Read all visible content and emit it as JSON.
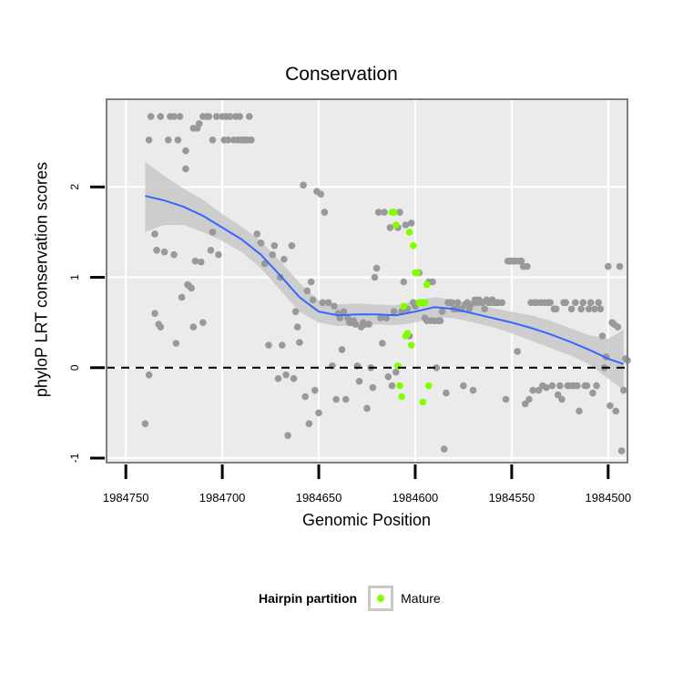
{
  "chart_data": {
    "type": "scatter",
    "title": "Conservation",
    "xlabel": "Genomic Position",
    "ylabel": "phyloP LRT conservation scores",
    "xlim": [
      1984760,
      1984490
    ],
    "ylim": [
      -1.05,
      2.97
    ],
    "x_ticks": [
      1984750,
      1984700,
      1984650,
      1984600,
      1984550,
      1984500
    ],
    "y_ticks": [
      -1,
      0,
      1,
      2
    ],
    "reference_line_y": 0,
    "colors": {
      "background": "#ebebeb",
      "grid": "#ffffff",
      "points": "#999999",
      "mature": "#7fff00",
      "smooth": "#3366ff",
      "ribbon": "#c8c8c8",
      "panel_border": "#7f7f7f"
    },
    "legend": {
      "title": "Hairpin partition",
      "entries": [
        "Mature"
      ]
    },
    "series": [
      {
        "name": "other",
        "points": [
          [
            1984740,
            -0.62
          ],
          [
            1984738,
            -0.08
          ],
          [
            1984738,
            2.52
          ],
          [
            1984737,
            2.78
          ],
          [
            1984735,
            1.48
          ],
          [
            1984735,
            0.6
          ],
          [
            1984734,
            1.3
          ],
          [
            1984733,
            0.48
          ],
          [
            1984732,
            0.45
          ],
          [
            1984732,
            2.78
          ],
          [
            1984730,
            1.28
          ],
          [
            1984728,
            2.52
          ],
          [
            1984727,
            2.78
          ],
          [
            1984725,
            1.25
          ],
          [
            1984725,
            2.78
          ],
          [
            1984724,
            0.27
          ],
          [
            1984723,
            2.52
          ],
          [
            1984722,
            2.78
          ],
          [
            1984721,
            0.78
          ],
          [
            1984719,
            2.4
          ],
          [
            1984719,
            2.2
          ],
          [
            1984718,
            0.92
          ],
          [
            1984717,
            0.9
          ],
          [
            1984716,
            0.88
          ],
          [
            1984715,
            0.45
          ],
          [
            1984715,
            2.65
          ],
          [
            1984714,
            1.18
          ],
          [
            1984713,
            2.65
          ],
          [
            1984712,
            2.7
          ],
          [
            1984711,
            1.17
          ],
          [
            1984710,
            0.5
          ],
          [
            1984710,
            2.78
          ],
          [
            1984708,
            2.78
          ],
          [
            1984707,
            2.78
          ],
          [
            1984706,
            1.3
          ],
          [
            1984705,
            1.5
          ],
          [
            1984705,
            2.52
          ],
          [
            1984703,
            2.78
          ],
          [
            1984702,
            1.25
          ],
          [
            1984700,
            2.78
          ],
          [
            1984699,
            2.52
          ],
          [
            1984698,
            2.78
          ],
          [
            1984697,
            2.52
          ],
          [
            1984696,
            2.78
          ],
          [
            1984694,
            2.52
          ],
          [
            1984693,
            2.78
          ],
          [
            1984692,
            2.52
          ],
          [
            1984691,
            2.78
          ],
          [
            1984690,
            2.52
          ],
          [
            1984689,
            2.52
          ],
          [
            1984688,
            2.52
          ],
          [
            1984687,
            2.52
          ],
          [
            1984686,
            2.78
          ],
          [
            1984685,
            2.52
          ],
          [
            1984682,
            1.48
          ],
          [
            1984680,
            1.38
          ],
          [
            1984678,
            1.15
          ],
          [
            1984676,
            0.25
          ],
          [
            1984674,
            1.25
          ],
          [
            1984673,
            1.35
          ],
          [
            1984671,
            -0.12
          ],
          [
            1984670,
            1.0
          ],
          [
            1984669,
            0.25
          ],
          [
            1984668,
            1.2
          ],
          [
            1984667,
            -0.08
          ],
          [
            1984666,
            -0.75
          ],
          [
            1984664,
            1.35
          ],
          [
            1984663,
            -0.12
          ],
          [
            1984662,
            0.62
          ],
          [
            1984661,
            0.45
          ],
          [
            1984660,
            0.28
          ],
          [
            1984658,
            2.02
          ],
          [
            1984657,
            -0.32
          ],
          [
            1984656,
            0.85
          ],
          [
            1984655,
            -0.62
          ],
          [
            1984654,
            0.95
          ],
          [
            1984653,
            0.75
          ],
          [
            1984652,
            -0.25
          ],
          [
            1984651,
            1.95
          ],
          [
            1984650,
            -0.5
          ],
          [
            1984649,
            1.92
          ],
          [
            1984648,
            0.72
          ],
          [
            1984647,
            1.72
          ],
          [
            1984645,
            0.72
          ],
          [
            1984643,
            0.02
          ],
          [
            1984642,
            0.68
          ],
          [
            1984641,
            -0.35
          ],
          [
            1984640,
            0.6
          ],
          [
            1984639,
            0.55
          ],
          [
            1984638,
            0.2
          ],
          [
            1984637,
            0.62
          ],
          [
            1984636,
            -0.35
          ],
          [
            1984635,
            0.55
          ],
          [
            1984634,
            0.5
          ],
          [
            1984633,
            0.5
          ],
          [
            1984632,
            0.52
          ],
          [
            1984631,
            0.48
          ],
          [
            1984630,
            0.02
          ],
          [
            1984629,
            -0.15
          ],
          [
            1984628,
            0.45
          ],
          [
            1984627,
            0.5
          ],
          [
            1984626,
            0.48
          ],
          [
            1984625,
            -0.45
          ],
          [
            1984624,
            0.48
          ],
          [
            1984623,
            0.0
          ],
          [
            1984622,
            -0.22
          ],
          [
            1984621,
            1.0
          ],
          [
            1984620,
            1.1
          ],
          [
            1984619,
            1.72
          ],
          [
            1984618,
            0.55
          ],
          [
            1984617,
            0.27
          ],
          [
            1984616,
            1.72
          ],
          [
            1984615,
            0.55
          ],
          [
            1984614,
            -0.1
          ],
          [
            1984613,
            1.55
          ],
          [
            1984612,
            -0.2
          ],
          [
            1984611,
            0.62
          ],
          [
            1984610,
            -0.05
          ],
          [
            1984609,
            1.55
          ],
          [
            1984608,
            1.72
          ],
          [
            1984607,
            0.62
          ],
          [
            1984606,
            0.95
          ],
          [
            1984605,
            1.58
          ],
          [
            1984604,
            0.65
          ],
          [
            1984603,
            0.35
          ],
          [
            1984602,
            1.6
          ],
          [
            1984601,
            0.72
          ],
          [
            1984600,
            0.68
          ],
          [
            1984599,
            1.05
          ],
          [
            1984598,
            1.05
          ],
          [
            1984597,
            0.72
          ],
          [
            1984596,
            0.72
          ],
          [
            1984595,
            0.55
          ],
          [
            1984594,
            0.52
          ],
          [
            1984593,
            0.95
          ],
          [
            1984592,
            0.52
          ],
          [
            1984591,
            0.95
          ],
          [
            1984590,
            0.52
          ],
          [
            1984589,
            0.0
          ],
          [
            1984588,
            0.52
          ],
          [
            1984587,
            0.52
          ],
          [
            1984586,
            0.62
          ],
          [
            1984585,
            -0.9
          ],
          [
            1984584,
            -0.28
          ],
          [
            1984583,
            0.72
          ],
          [
            1984582,
            0.72
          ],
          [
            1984581,
            0.72
          ],
          [
            1984580,
            0.65
          ],
          [
            1984579,
            0.65
          ],
          [
            1984578,
            0.72
          ],
          [
            1984577,
            0.65
          ],
          [
            1984576,
            0.65
          ],
          [
            1984575,
            -0.2
          ],
          [
            1984574,
            0.7
          ],
          [
            1984573,
            0.72
          ],
          [
            1984572,
            0.65
          ],
          [
            1984571,
            0.7
          ],
          [
            1984570,
            -0.25
          ],
          [
            1984569,
            0.75
          ],
          [
            1984568,
            0.72
          ],
          [
            1984567,
            0.75
          ],
          [
            1984566,
            0.72
          ],
          [
            1984565,
            0.72
          ],
          [
            1984564,
            0.65
          ],
          [
            1984563,
            0.75
          ],
          [
            1984562,
            0.72
          ],
          [
            1984561,
            0.72
          ],
          [
            1984560,
            0.75
          ],
          [
            1984559,
            0.72
          ],
          [
            1984558,
            0.72
          ],
          [
            1984557,
            0.72
          ],
          [
            1984555,
            0.72
          ],
          [
            1984553,
            -0.35
          ],
          [
            1984552,
            1.18
          ],
          [
            1984551,
            1.18
          ],
          [
            1984550,
            1.18
          ],
          [
            1984549,
            1.18
          ],
          [
            1984548,
            1.18
          ],
          [
            1984547,
            0.18
          ],
          [
            1984546,
            1.18
          ],
          [
            1984545,
            1.18
          ],
          [
            1984544,
            1.12
          ],
          [
            1984543,
            -0.4
          ],
          [
            1984542,
            1.12
          ],
          [
            1984541,
            -0.35
          ],
          [
            1984540,
            0.72
          ],
          [
            1984539,
            -0.25
          ],
          [
            1984538,
            0.72
          ],
          [
            1984537,
            0.72
          ],
          [
            1984536,
            -0.25
          ],
          [
            1984535,
            0.72
          ],
          [
            1984534,
            -0.2
          ],
          [
            1984533,
            0.72
          ],
          [
            1984532,
            -0.22
          ],
          [
            1984531,
            0.72
          ],
          [
            1984530,
            0.72
          ],
          [
            1984529,
            -0.2
          ],
          [
            1984528,
            0.65
          ],
          [
            1984527,
            0.65
          ],
          [
            1984526,
            -0.3
          ],
          [
            1984525,
            -0.2
          ],
          [
            1984524,
            -0.35
          ],
          [
            1984523,
            0.72
          ],
          [
            1984522,
            0.72
          ],
          [
            1984521,
            -0.2
          ],
          [
            1984520,
            -0.2
          ],
          [
            1984519,
            0.65
          ],
          [
            1984518,
            -0.2
          ],
          [
            1984517,
            0.72
          ],
          [
            1984516,
            -0.2
          ],
          [
            1984515,
            -0.48
          ],
          [
            1984514,
            0.65
          ],
          [
            1984513,
            0.72
          ],
          [
            1984512,
            -0.2
          ],
          [
            1984511,
            -0.2
          ],
          [
            1984510,
            0.65
          ],
          [
            1984509,
            0.72
          ],
          [
            1984508,
            -0.28
          ],
          [
            1984507,
            0.65
          ],
          [
            1984506,
            -0.2
          ],
          [
            1984505,
            0.72
          ],
          [
            1984504,
            0.65
          ],
          [
            1984503,
            0.35
          ],
          [
            1984502,
            0.0
          ],
          [
            1984501,
            0.12
          ],
          [
            1984500,
            1.12
          ],
          [
            1984499,
            -0.42
          ],
          [
            1984498,
            0.5
          ],
          [
            1984497,
            0.48
          ],
          [
            1984496,
            -0.48
          ],
          [
            1984495,
            0.45
          ],
          [
            1984494,
            1.12
          ],
          [
            1984493,
            -0.92
          ],
          [
            1984492,
            -0.25
          ],
          [
            1984491,
            0.1
          ],
          [
            1984490,
            0.08
          ]
        ]
      },
      {
        "name": "Mature",
        "points": [
          [
            1984612,
            1.72
          ],
          [
            1984611,
            1.72
          ],
          [
            1984610,
            1.58
          ],
          [
            1984609,
            0.02
          ],
          [
            1984608,
            -0.2
          ],
          [
            1984607,
            -0.32
          ],
          [
            1984606,
            0.68
          ],
          [
            1984605,
            0.35
          ],
          [
            1984604,
            0.38
          ],
          [
            1984603,
            1.5
          ],
          [
            1984602,
            0.25
          ],
          [
            1984601,
            1.35
          ],
          [
            1984600,
            1.05
          ],
          [
            1984599,
            1.05
          ],
          [
            1984598,
            0.72
          ],
          [
            1984597,
            0.72
          ],
          [
            1984596,
            -0.38
          ],
          [
            1984595,
            0.72
          ],
          [
            1984594,
            0.92
          ],
          [
            1984593,
            -0.2
          ]
        ]
      }
    ],
    "smooth": {
      "x": [
        1984740,
        1984730,
        1984720,
        1984710,
        1984700,
        1984690,
        1984680,
        1984670,
        1984660,
        1984650,
        1984640,
        1984630,
        1984620,
        1984610,
        1984600,
        1984590,
        1984580,
        1984570,
        1984560,
        1984550,
        1984540,
        1984530,
        1984520,
        1984510,
        1984500,
        1984492
      ],
      "y": [
        1.9,
        1.85,
        1.78,
        1.68,
        1.55,
        1.42,
        1.25,
        1.02,
        0.78,
        0.62,
        0.58,
        0.59,
        0.59,
        0.58,
        0.62,
        0.67,
        0.65,
        0.6,
        0.55,
        0.5,
        0.44,
        0.37,
        0.29,
        0.2,
        0.1,
        0.04
      ],
      "ymin": [
        1.5,
        1.58,
        1.58,
        1.5,
        1.4,
        1.28,
        1.1,
        0.86,
        0.62,
        0.5,
        0.46,
        0.47,
        0.48,
        0.47,
        0.5,
        0.56,
        0.55,
        0.5,
        0.45,
        0.38,
        0.3,
        0.22,
        0.14,
        0.04,
        -0.12,
        -0.25
      ],
      "ymax": [
        2.28,
        2.12,
        1.98,
        1.86,
        1.7,
        1.56,
        1.4,
        1.18,
        0.94,
        0.74,
        0.7,
        0.71,
        0.7,
        0.69,
        0.74,
        0.78,
        0.75,
        0.7,
        0.66,
        0.62,
        0.58,
        0.52,
        0.44,
        0.36,
        0.32,
        0.42
      ]
    }
  }
}
